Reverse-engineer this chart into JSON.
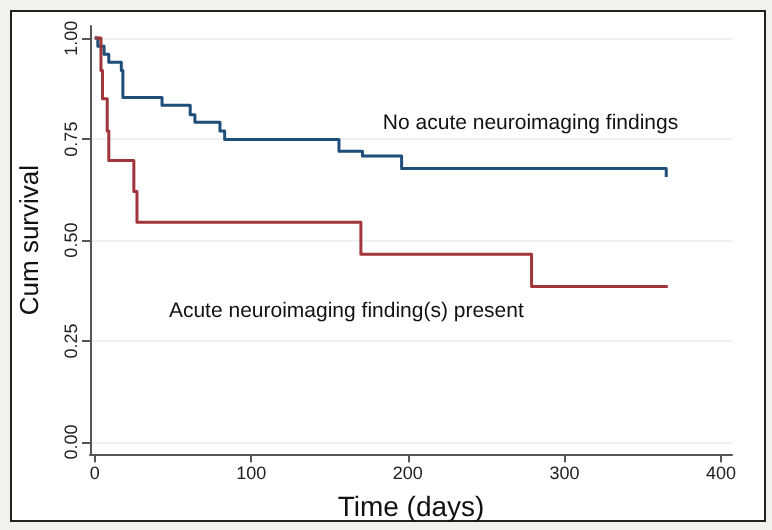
{
  "chart_data": {
    "type": "step",
    "xlabel": "Time (days)",
    "ylabel": "Cum survival",
    "xlim": [
      -3,
      407
    ],
    "xticks": [
      0,
      100,
      200,
      300,
      400
    ],
    "ylim": [
      -0.03,
      1.03
    ],
    "yticks": [
      {
        "value": 0,
        "label": "0.00"
      },
      {
        "value": 0.25,
        "label": "0.25"
      },
      {
        "value": 0.5,
        "label": "0.50"
      },
      {
        "value": 0.75,
        "label": "0.75"
      },
      {
        "value": 1,
        "label": "1.00"
      }
    ],
    "grid": "y",
    "marker": "none",
    "line_style": "solid",
    "series": [
      {
        "name": "No acute neuroimaging findings",
        "color": "#1f4e79",
        "x": [
          0,
          2,
          6,
          9,
          17,
          18,
          43,
          61,
          64,
          80,
          83,
          156,
          171,
          196,
          365
        ],
        "values": [
          1,
          0.98,
          0.96,
          0.94,
          0.92,
          0.853,
          0.834,
          0.81,
          0.792,
          0.77,
          0.749,
          0.72,
          0.708,
          0.677,
          0.656
        ]
      },
      {
        "name": "Acute neuroimaging finding(s) present",
        "color": "#a0363c",
        "x": [
          0,
          4,
          5,
          8,
          9,
          25,
          27,
          170,
          279,
          366
        ],
        "values": [
          1,
          0.92,
          0.85,
          0.77,
          0.697,
          0.62,
          0.544,
          0.465,
          0.385,
          0.385
        ]
      }
    ]
  }
}
